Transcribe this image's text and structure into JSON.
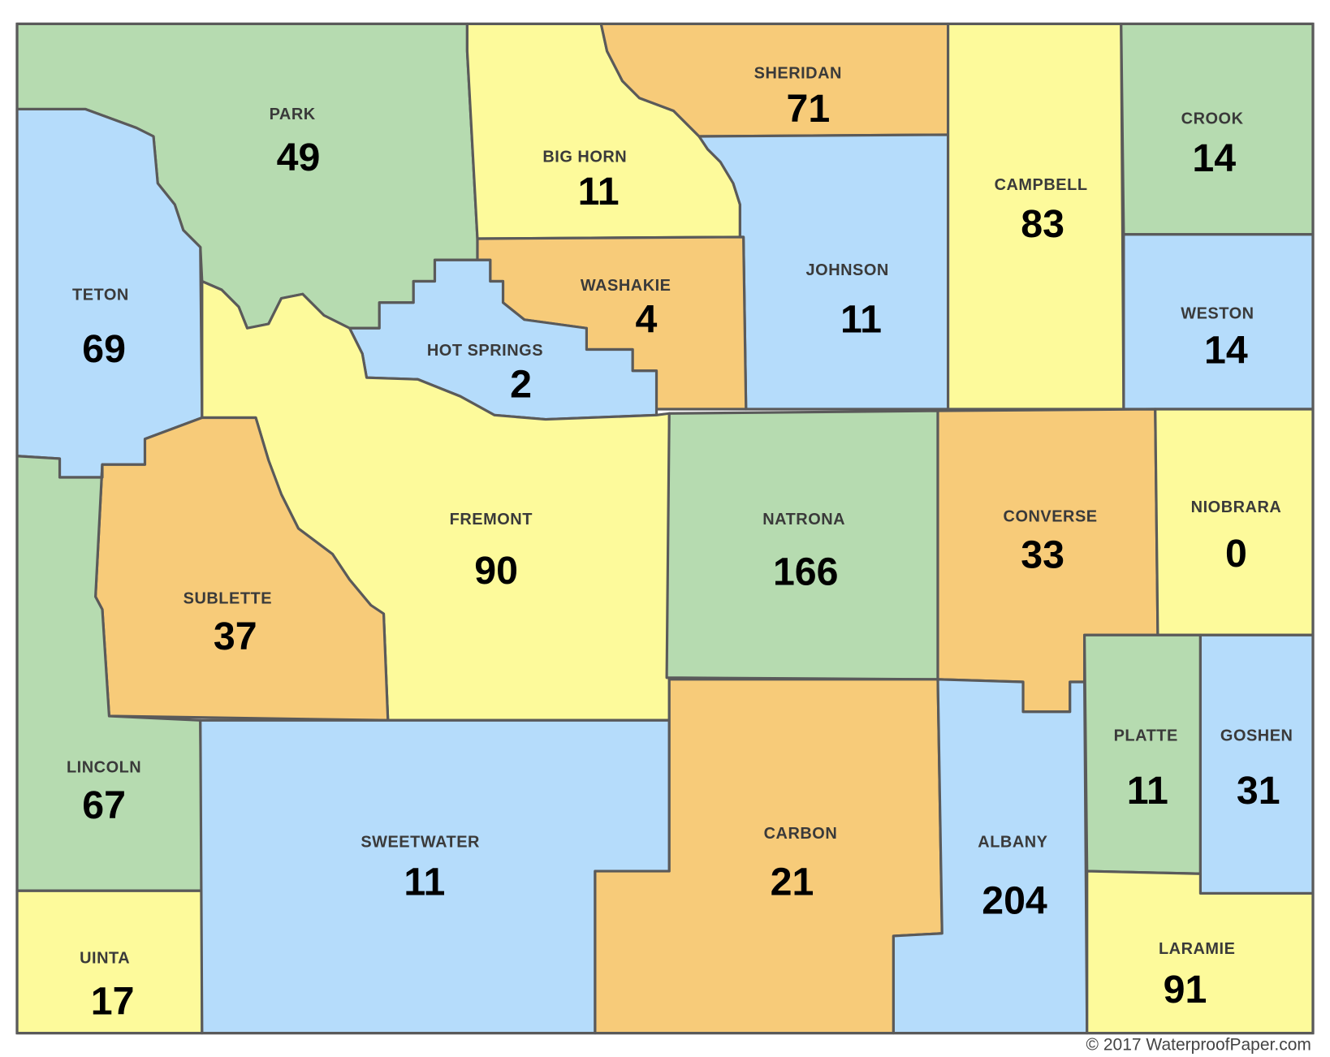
{
  "map": {
    "region": "Wyoming",
    "colors": {
      "green": "#b6dbb0",
      "blue": "#b5dcfb",
      "yellow": "#fdfa9b",
      "orange": "#f7cb79",
      "border": "#5a5a5a"
    },
    "counties": [
      {
        "name": "PARK",
        "value": "49"
      },
      {
        "name": "TETON",
        "value": "69"
      },
      {
        "name": "BIG HORN",
        "value": "11"
      },
      {
        "name": "SHERIDAN",
        "value": "71"
      },
      {
        "name": "JOHNSON",
        "value": "11"
      },
      {
        "name": "CAMPBELL",
        "value": "83"
      },
      {
        "name": "CROOK",
        "value": "14"
      },
      {
        "name": "WESTON",
        "value": "14"
      },
      {
        "name": "WASHAKIE",
        "value": "4"
      },
      {
        "name": "HOT SPRINGS",
        "value": "2"
      },
      {
        "name": "FREMONT",
        "value": "90"
      },
      {
        "name": "SUBLETTE",
        "value": "37"
      },
      {
        "name": "LINCOLN",
        "value": "67"
      },
      {
        "name": "UINTA",
        "value": "17"
      },
      {
        "name": "SWEETWATER",
        "value": "11"
      },
      {
        "name": "NATRONA",
        "value": "166"
      },
      {
        "name": "CARBON",
        "value": "21"
      },
      {
        "name": "CONVERSE",
        "value": "33"
      },
      {
        "name": "NIOBRARA",
        "value": "0"
      },
      {
        "name": "ALBANY",
        "value": "204"
      },
      {
        "name": "PLATTE",
        "value": "11"
      },
      {
        "name": "GOSHEN",
        "value": "31"
      },
      {
        "name": "LARAMIE",
        "value": "91"
      }
    ],
    "copyright": "© 2017 WaterproofPaper.com"
  }
}
